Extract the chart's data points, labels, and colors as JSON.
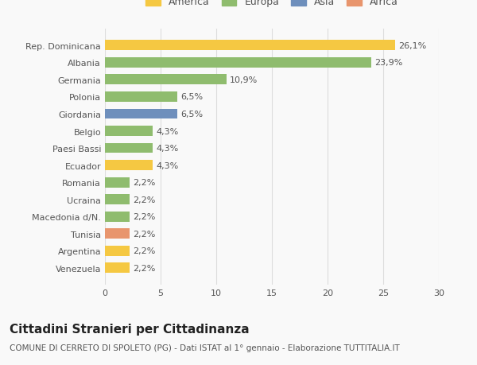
{
  "categories": [
    "Venezuela",
    "Argentina",
    "Tunisia",
    "Macedonia d/N.",
    "Ucraina",
    "Romania",
    "Ecuador",
    "Paesi Bassi",
    "Belgio",
    "Giordania",
    "Polonia",
    "Germania",
    "Albania",
    "Rep. Dominicana"
  ],
  "values": [
    2.2,
    2.2,
    2.2,
    2.2,
    2.2,
    2.2,
    4.3,
    4.3,
    4.3,
    6.5,
    6.5,
    10.9,
    23.9,
    26.1
  ],
  "colors": [
    "#f5c842",
    "#f5c842",
    "#e8956d",
    "#8fbc6e",
    "#8fbc6e",
    "#8fbc6e",
    "#f5c842",
    "#8fbc6e",
    "#8fbc6e",
    "#6e8fbc",
    "#8fbc6e",
    "#8fbc6e",
    "#8fbc6e",
    "#f5c842"
  ],
  "labels": [
    "2,2%",
    "2,2%",
    "2,2%",
    "2,2%",
    "2,2%",
    "2,2%",
    "4,3%",
    "4,3%",
    "4,3%",
    "6,5%",
    "6,5%",
    "10,9%",
    "23,9%",
    "26,1%"
  ],
  "legend": [
    {
      "label": "America",
      "color": "#f5c842"
    },
    {
      "label": "Europa",
      "color": "#8fbc6e"
    },
    {
      "label": "Asia",
      "color": "#6e8fbc"
    },
    {
      "label": "Africa",
      "color": "#e8956d"
    }
  ],
  "title": "Cittadini Stranieri per Cittadinanza",
  "subtitle": "COMUNE DI CERRETO DI SPOLETO (PG) - Dati ISTAT al 1° gennaio - Elaborazione TUTTITALIA.IT",
  "xlim": [
    0,
    30
  ],
  "xticks": [
    0,
    5,
    10,
    15,
    20,
    25,
    30
  ],
  "background_color": "#f9f9f9",
  "grid_color": "#dddddd",
  "bar_height": 0.6,
  "title_fontsize": 11,
  "subtitle_fontsize": 7.5,
  "label_fontsize": 8,
  "tick_fontsize": 8,
  "legend_fontsize": 9
}
